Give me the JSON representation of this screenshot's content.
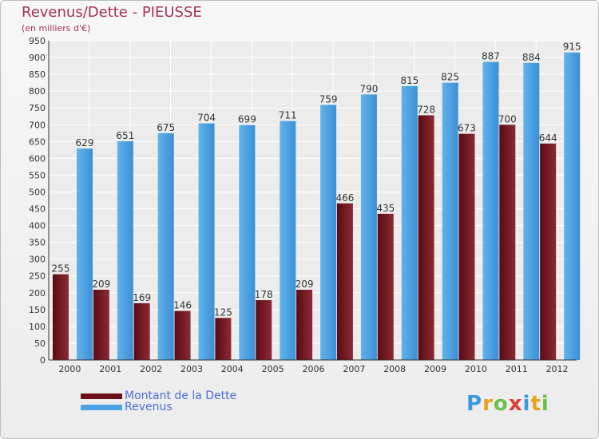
{
  "title": "Revenus/Dette - PIEUSSE",
  "subtitle": "(en milliers d'€)",
  "chart_data": {
    "type": "bar",
    "title": "Revenus/Dette - PIEUSSE",
    "subtitle": "(en milliers d'€)",
    "xlabel": "",
    "ylabel": "",
    "ylim": [
      0,
      950
    ],
    "ytick_step": 50,
    "grid": true,
    "categories": [
      "2000",
      "2001",
      "2002",
      "2003",
      "2004",
      "2005",
      "2006",
      "2007",
      "2008",
      "2009",
      "2010",
      "2011",
      "2012"
    ],
    "series": [
      {
        "name": "Montant de la Dette",
        "color": "#7a1a24",
        "values": [
          255,
          209,
          169,
          146,
          125,
          178,
          209,
          466,
          435,
          728,
          673,
          700,
          644
        ]
      },
      {
        "name": "Revenus",
        "color": "#4da3e3",
        "values": [
          629,
          651,
          675,
          704,
          699,
          711,
          759,
          790,
          815,
          825,
          887,
          884,
          915
        ]
      }
    ]
  },
  "legend": {
    "items": [
      {
        "label": "Montant de la Dette",
        "color": "#6b0f1a"
      },
      {
        "label": "Revenus",
        "color": "#4da3e3"
      }
    ],
    "placement": "bottom-left"
  },
  "logo": {
    "text": "Proxiti",
    "letters": [
      "P",
      "r",
      "o",
      "x",
      "i",
      "t",
      "i"
    ],
    "colors": [
      "#3a9ad9",
      "#e8a21e",
      "#6cc04a",
      "#e03a3a",
      "#3a9ad9",
      "#e8a21e",
      "#6cc04a"
    ]
  }
}
